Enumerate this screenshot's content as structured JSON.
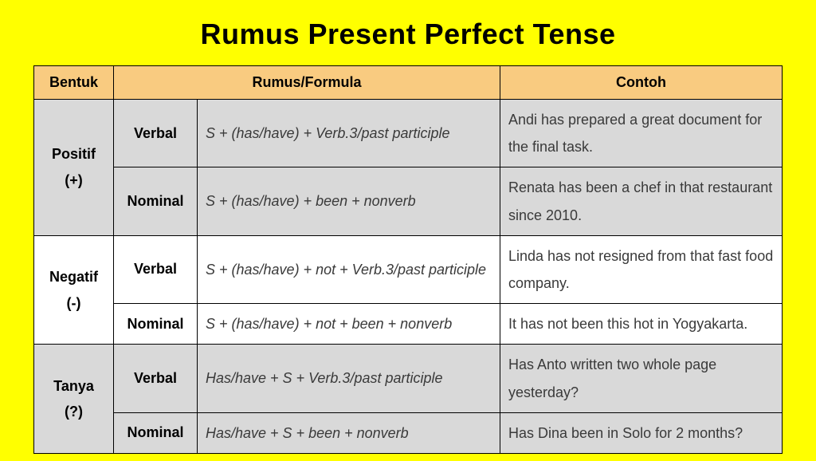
{
  "title": "Rumus Present Perfect Tense",
  "headers": {
    "bentuk": "Bentuk",
    "rumus": "Rumus/Formula",
    "contoh": "Contoh"
  },
  "groups": [
    {
      "label_line1": "Positif",
      "label_line2": "(+)",
      "shaded": true,
      "rows": [
        {
          "kind": "Verbal",
          "formula": "S + (has/have) + Verb.3/past participle",
          "example": "Andi has prepared a great document for the final task."
        },
        {
          "kind": "Nominal",
          "formula": "S + (has/have) + been + nonverb",
          "example": "Renata has been a chef in that restaurant since 2010."
        }
      ]
    },
    {
      "label_line1": "Negatif",
      "label_line2": "(-)",
      "shaded": false,
      "rows": [
        {
          "kind": "Verbal",
          "formula": "S + (has/have) + not + Verb.3/past participle",
          "example": "Linda has not resigned from that fast food company."
        },
        {
          "kind": "Nominal",
          "formula": "S + (has/have) + not + been + nonverb",
          "example": "It has not been this hot in Yogyakarta."
        }
      ]
    },
    {
      "label_line1": "Tanya",
      "label_line2": "(?)",
      "shaded": true,
      "rows": [
        {
          "kind": "Verbal",
          "formula": "Has/have + S + Verb.3/past participle",
          "example": "Has Anto written two whole page yesterday?"
        },
        {
          "kind": "Nominal",
          "formula": "Has/have + S + been + nonverb",
          "example": " Has Dina been in Solo for 2 months?"
        }
      ]
    }
  ],
  "style": {
    "page_bg": "#ffff00",
    "header_bg": "#f9cb80",
    "shaded_bg": "#d9d9d9",
    "plain_bg": "#ffffff",
    "border_color": "#000000",
    "title_fontsize": 36,
    "cell_fontsize": 18
  }
}
